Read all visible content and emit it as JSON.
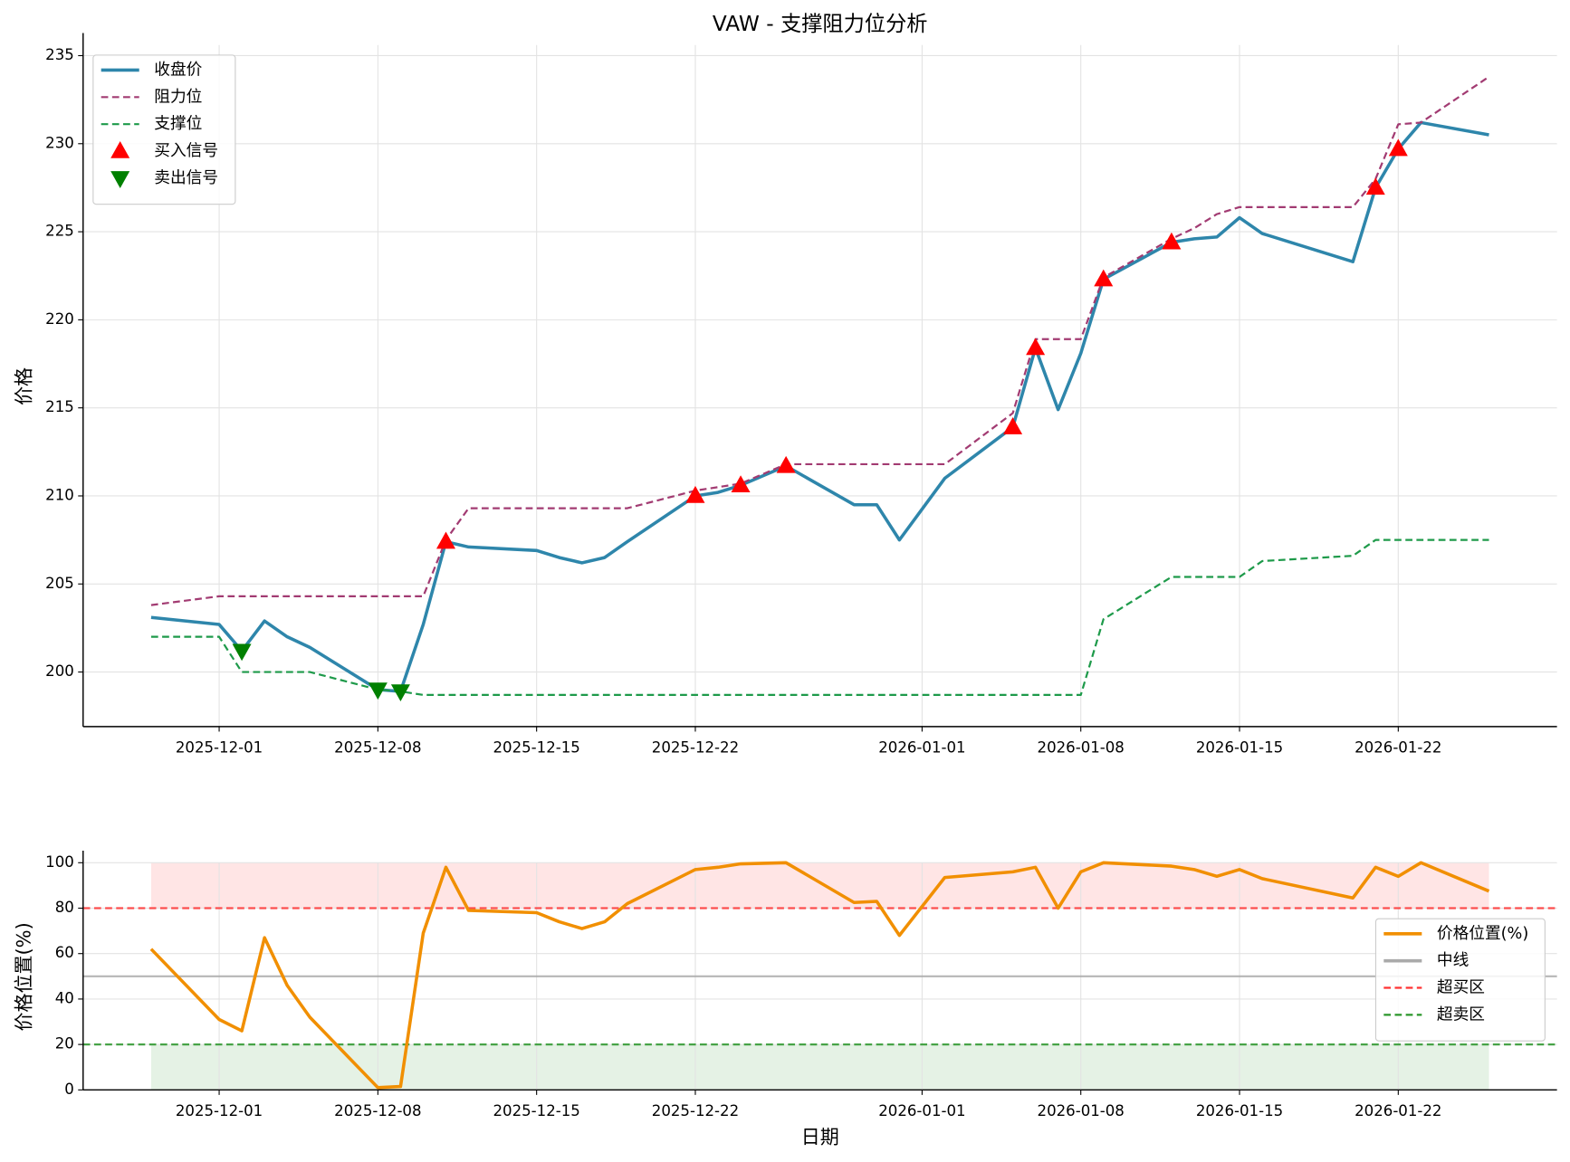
{
  "chart_data": [
    {
      "type": "line",
      "title": "VAW - 支撑阻力位分析",
      "y_label": "价格",
      "grid": true,
      "legend": "upper left",
      "x": [
        "2025-11-28",
        "2025-12-01",
        "2025-12-02",
        "2025-12-03",
        "2025-12-04",
        "2025-12-05",
        "2025-12-08",
        "2025-12-09",
        "2025-12-10",
        "2025-12-11",
        "2025-12-12",
        "2025-12-15",
        "2025-12-16",
        "2025-12-17",
        "2025-12-18",
        "2025-12-19",
        "2025-12-22",
        "2025-12-23",
        "2025-12-24",
        "2025-12-26",
        "2025-12-29",
        "2025-12-30",
        "2025-12-31",
        "2026-01-02",
        "2026-01-05",
        "2026-01-06",
        "2026-01-07",
        "2026-01-08",
        "2026-01-09",
        "2026-01-12",
        "2026-01-13",
        "2026-01-14",
        "2026-01-15",
        "2026-01-16",
        "2026-01-20",
        "2026-01-21",
        "2026-01-22",
        "2026-01-23",
        "2026-01-26"
      ],
      "xlim": [
        "2025-11-25",
        "2026-01-29"
      ],
      "xticks": [
        "2025-12-01",
        "2025-12-08",
        "2025-12-15",
        "2025-12-22",
        "2026-01-01",
        "2026-01-08",
        "2026-01-15",
        "2026-01-22"
      ],
      "ylim": [
        196.9,
        235.6
      ],
      "yticks": [
        200,
        205,
        210,
        215,
        220,
        225,
        230,
        235
      ],
      "series": [
        {
          "name": "收盘价",
          "color": "#2e86ab",
          "mark": "solid",
          "values": [
            203.1,
            202.7,
            201.2,
            202.9,
            202.0,
            201.4,
            199.0,
            198.9,
            202.7,
            207.4,
            207.1,
            206.9,
            206.5,
            206.2,
            206.5,
            207.4,
            210.0,
            210.2,
            210.6,
            211.7,
            209.5,
            209.5,
            207.5,
            211.0,
            213.9,
            218.4,
            214.9,
            218.1,
            222.3,
            224.4,
            224.6,
            224.7,
            225.8,
            224.9,
            223.3,
            227.5,
            229.7,
            231.2,
            230.5
          ]
        },
        {
          "name": "阻力位",
          "color": "#a23b72",
          "mark": "dashed",
          "values": [
            203.8,
            204.3,
            204.3,
            204.3,
            204.3,
            204.3,
            204.3,
            204.3,
            204.3,
            207.5,
            209.3,
            209.3,
            209.3,
            209.3,
            209.3,
            209.3,
            210.3,
            210.5,
            210.7,
            211.8,
            211.8,
            211.8,
            211.8,
            211.8,
            214.7,
            218.9,
            218.9,
            218.9,
            222.4,
            224.6,
            225.2,
            226.0,
            226.4,
            226.4,
            226.4,
            228.0,
            231.1,
            231.2,
            233.8
          ]
        },
        {
          "name": "支撑位",
          "color": "#1e9a4a",
          "mark": "dashed",
          "values": [
            202.0,
            202.0,
            200.0,
            200.0,
            200.0,
            200.0,
            199.0,
            198.9,
            198.7,
            198.7,
            198.7,
            198.7,
            198.7,
            198.7,
            198.7,
            198.7,
            198.7,
            198.7,
            198.7,
            198.7,
            198.7,
            198.7,
            198.7,
            198.7,
            198.7,
            198.7,
            198.7,
            198.7,
            203.0,
            205.4,
            205.4,
            205.4,
            205.4,
            206.3,
            206.6,
            207.5,
            207.5,
            207.5,
            207.5
          ]
        },
        {
          "name": "买入信号",
          "color": "#ff0000",
          "mark": "triangle-up",
          "values": [
            null,
            null,
            null,
            null,
            null,
            null,
            null,
            null,
            null,
            207.4,
            null,
            null,
            null,
            null,
            null,
            null,
            210.0,
            null,
            210.6,
            211.7,
            null,
            null,
            null,
            null,
            213.9,
            218.4,
            null,
            null,
            222.3,
            224.4,
            null,
            null,
            null,
            null,
            null,
            227.5,
            229.7,
            null,
            null
          ]
        },
        {
          "name": "卖出信号",
          "color": "#008000",
          "mark": "triangle-down",
          "values": [
            null,
            null,
            201.2,
            null,
            null,
            null,
            199.0,
            198.9,
            null,
            null,
            null,
            null,
            null,
            null,
            null,
            null,
            null,
            null,
            null,
            null,
            null,
            null,
            null,
            null,
            null,
            null,
            null,
            null,
            null,
            null,
            null,
            null,
            null,
            null,
            null,
            null,
            null,
            null,
            null
          ]
        }
      ]
    },
    {
      "type": "line",
      "x_label": "日期",
      "y_label": "价格位置(%)",
      "grid": true,
      "legend": "center right",
      "x": [
        "2025-11-28",
        "2025-12-01",
        "2025-12-02",
        "2025-12-03",
        "2025-12-04",
        "2025-12-05",
        "2025-12-08",
        "2025-12-09",
        "2025-12-10",
        "2025-12-11",
        "2025-12-12",
        "2025-12-15",
        "2025-12-16",
        "2025-12-17",
        "2025-12-18",
        "2025-12-19",
        "2025-12-22",
        "2025-12-23",
        "2025-12-24",
        "2025-12-26",
        "2025-12-29",
        "2025-12-30",
        "2025-12-31",
        "2026-01-02",
        "2026-01-05",
        "2026-01-06",
        "2026-01-07",
        "2026-01-08",
        "2026-01-09",
        "2026-01-12",
        "2026-01-13",
        "2026-01-14",
        "2026-01-15",
        "2026-01-16",
        "2026-01-20",
        "2026-01-21",
        "2026-01-22",
        "2026-01-23",
        "2026-01-26"
      ],
      "xlim": [
        "2025-11-25",
        "2026-01-29"
      ],
      "xticks": [
        "2025-12-01",
        "2025-12-08",
        "2025-12-15",
        "2025-12-22",
        "2026-01-01",
        "2026-01-08",
        "2026-01-15",
        "2026-01-22"
      ],
      "ylim": [
        0,
        100
      ],
      "yticks": [
        0,
        20,
        40,
        60,
        80,
        100
      ],
      "series": [
        {
          "name": "价格位置(%)",
          "color": "#f18f01",
          "mark": "solid",
          "values": [
            62,
            31,
            26,
            67,
            46,
            32,
            1,
            1.5,
            69,
            98,
            79,
            78,
            74,
            71,
            74,
            82,
            97,
            98,
            99.5,
            100,
            82.5,
            83,
            68,
            93.5,
            96,
            98,
            80,
            96,
            100,
            98.5,
            97,
            94,
            97,
            93,
            84.5,
            98,
            94,
            100,
            87.5
          ]
        }
      ],
      "hlines": [
        {
          "name": "中线",
          "value": 50,
          "color": "#aaaaaa",
          "mark": "solid"
        },
        {
          "name": "超买区",
          "value": 80,
          "color": "#ff3333",
          "mark": "dashed"
        },
        {
          "name": "超卖区",
          "value": 20,
          "color": "#2a962a",
          "mark": "dashed"
        }
      ],
      "bands": [
        {
          "from": 80,
          "to": 100,
          "color": "#ff0000"
        },
        {
          "from": 0,
          "to": 20,
          "color": "#008000"
        }
      ]
    }
  ]
}
